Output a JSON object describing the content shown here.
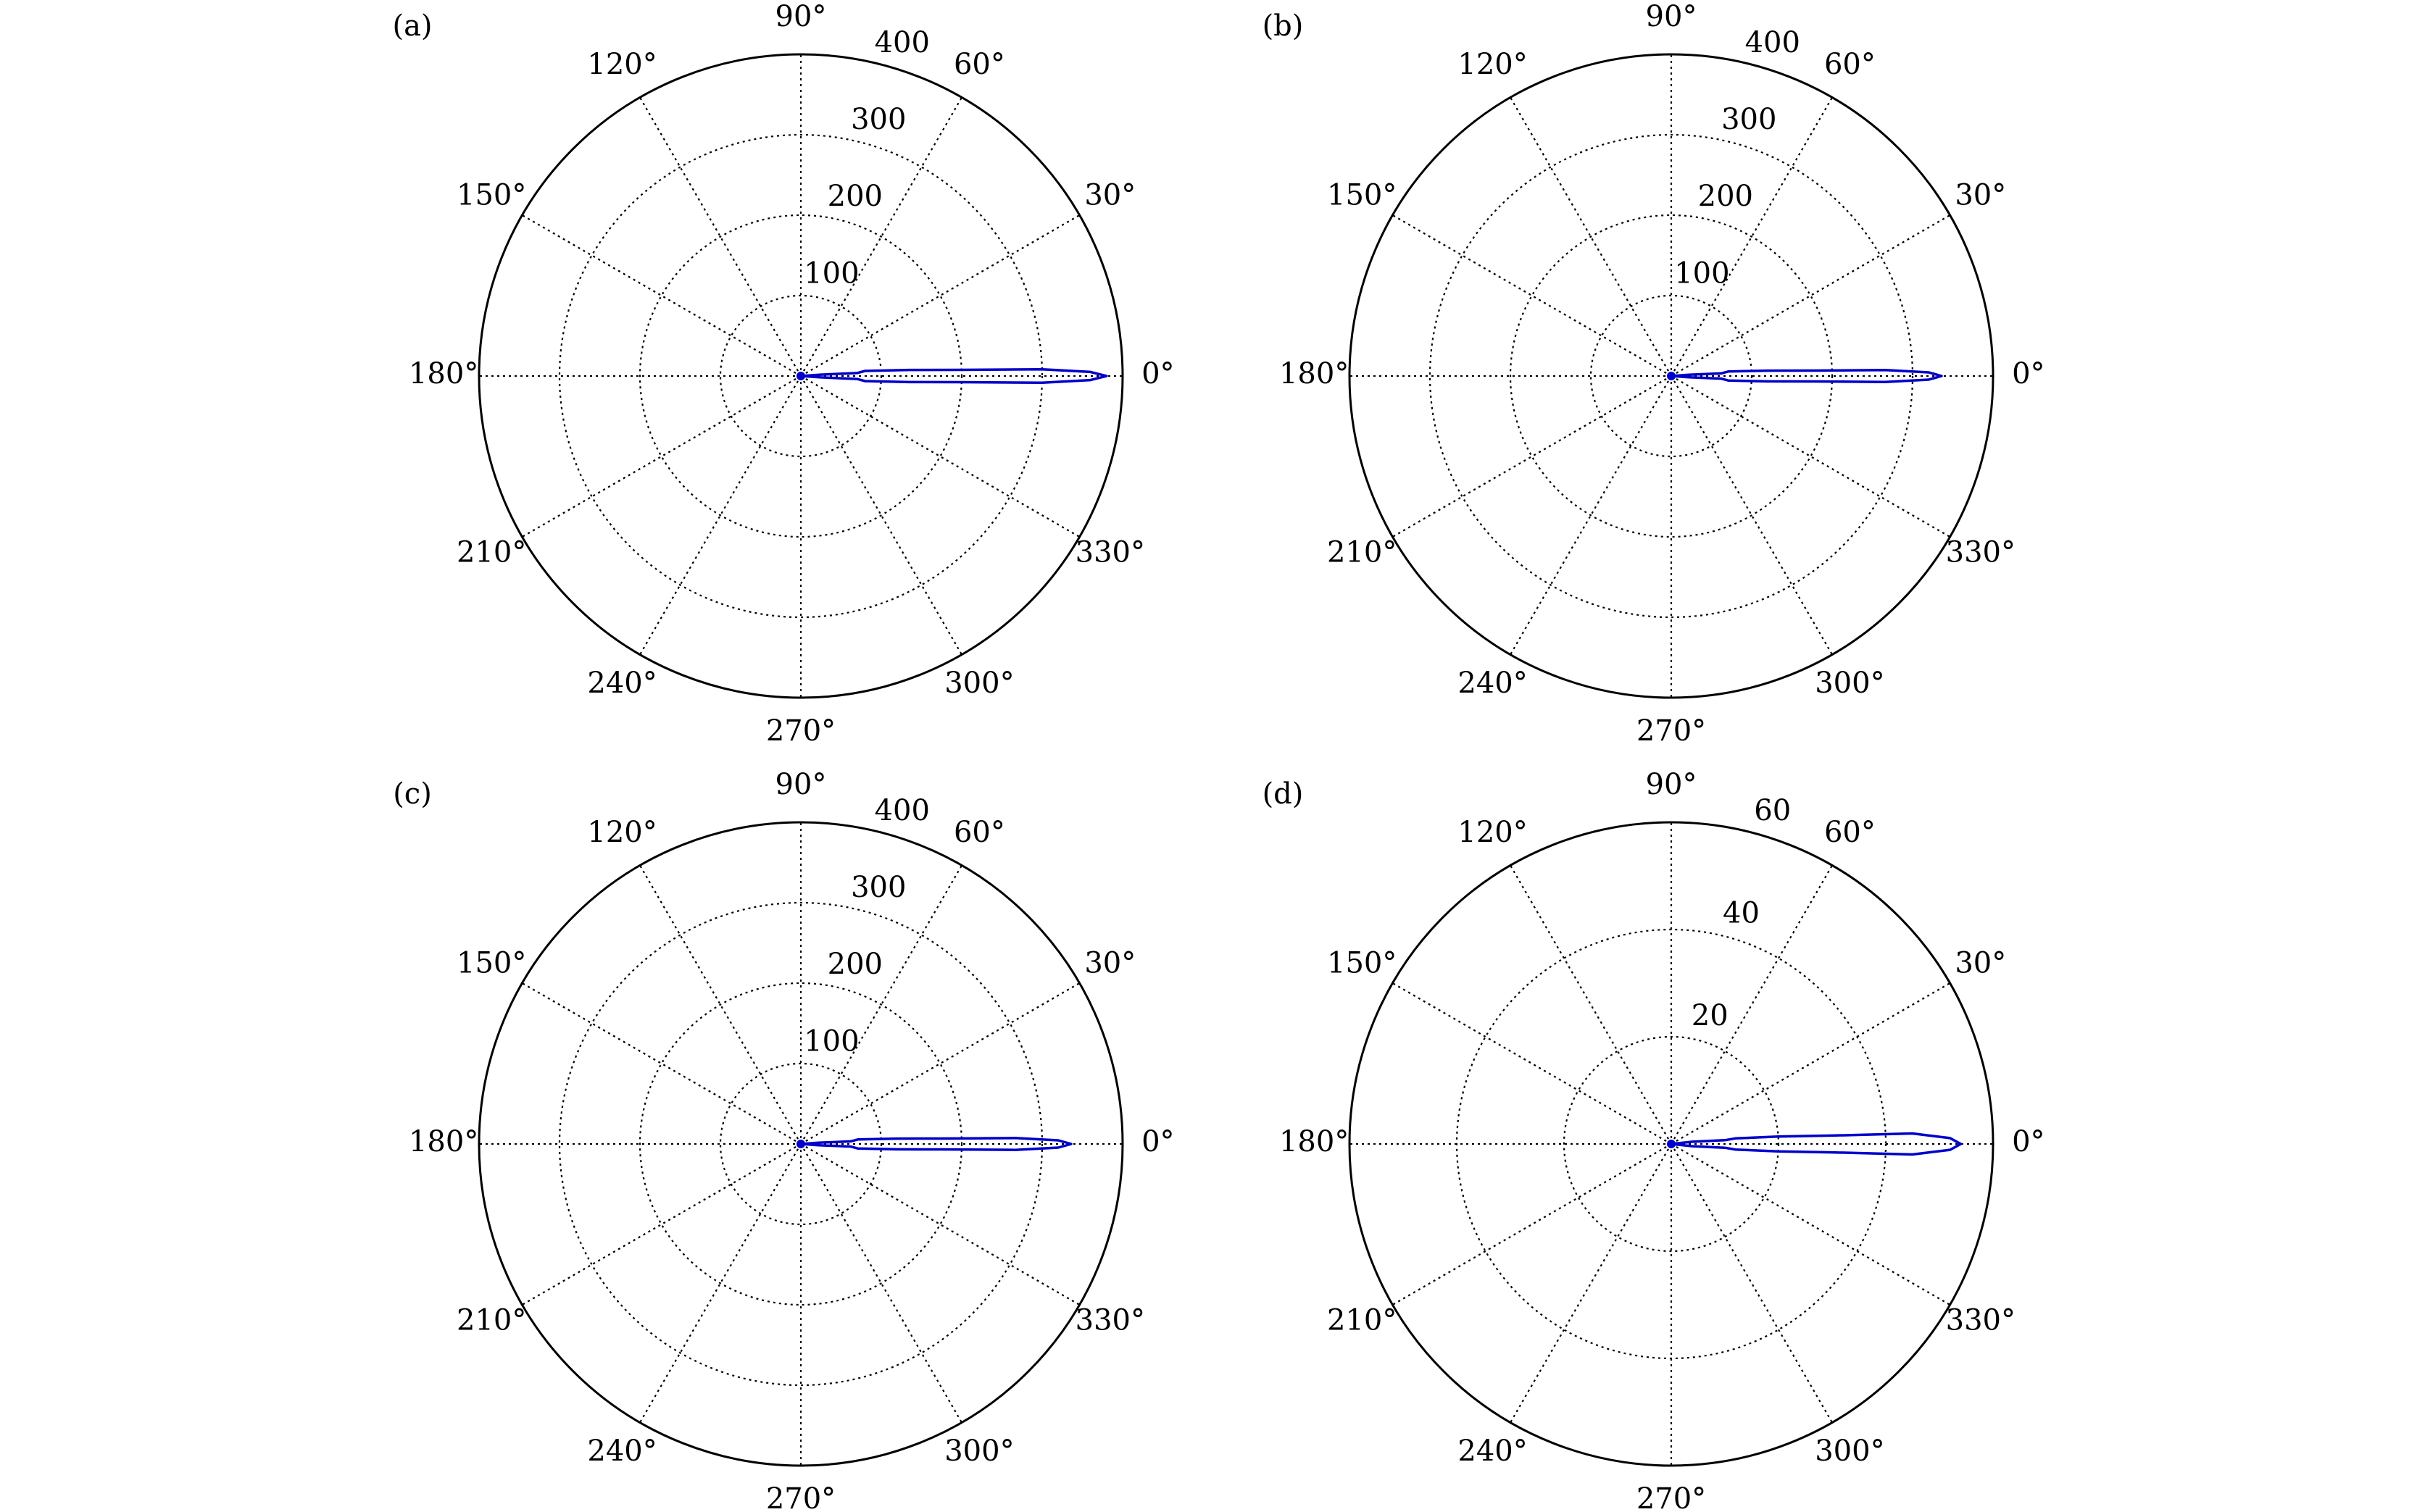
{
  "chart_data": [
    {
      "type": "polar",
      "panel_label": "(a)",
      "grid": true,
      "rlim": [
        0,
        400
      ],
      "rticks": [
        100,
        200,
        300,
        400
      ],
      "theta_ticks": [
        {
          "value": 0,
          "label": "0°"
        },
        {
          "value": 30,
          "label": "30°"
        },
        {
          "value": 60,
          "label": "60°"
        },
        {
          "value": 90,
          "label": "90°"
        },
        {
          "value": 120,
          "label": "120°"
        },
        {
          "value": 150,
          "label": "150°"
        },
        {
          "value": 180,
          "label": "180°"
        },
        {
          "value": 210,
          "label": "210°"
        },
        {
          "value": 240,
          "label": "240°"
        },
        {
          "value": 270,
          "label": "270°"
        },
        {
          "value": 300,
          "label": "300°"
        },
        {
          "value": 330,
          "label": "330°"
        }
      ],
      "series": [
        {
          "color": "#0000cc",
          "theta": [
            0,
            4,
            3,
            4.5,
            3.2,
            2.2,
            1.6,
            0.8,
            0,
            -0.8,
            -1.6,
            -2.2,
            -3.2,
            -4.5,
            -3,
            -4,
            0
          ],
          "r": [
            0,
            25,
            70,
            80,
            135,
            200,
            300,
            360,
            380,
            360,
            300,
            200,
            135,
            80,
            70,
            25,
            0
          ]
        }
      ]
    },
    {
      "type": "polar",
      "panel_label": "(b)",
      "grid": true,
      "rlim": [
        0,
        400
      ],
      "rticks": [
        100,
        200,
        300,
        400
      ],
      "theta_ticks": [
        {
          "value": 0,
          "label": "0°"
        },
        {
          "value": 30,
          "label": "30°"
        },
        {
          "value": 60,
          "label": "60°"
        },
        {
          "value": 90,
          "label": "90°"
        },
        {
          "value": 120,
          "label": "120°"
        },
        {
          "value": 150,
          "label": "150°"
        },
        {
          "value": 180,
          "label": "180°"
        },
        {
          "value": 210,
          "label": "210°"
        },
        {
          "value": 240,
          "label": "240°"
        },
        {
          "value": 270,
          "label": "270°"
        },
        {
          "value": 300,
          "label": "300°"
        },
        {
          "value": 330,
          "label": "330°"
        }
      ],
      "series": [
        {
          "color": "#0000cc",
          "theta": [
            0,
            4,
            3,
            4.5,
            3.2,
            2.2,
            1.6,
            0.8,
            0,
            -0.8,
            -1.6,
            -2.2,
            -3.2,
            -4.5,
            -3,
            -4,
            0
          ],
          "r": [
            0,
            22,
            62,
            71,
            120,
            177,
            266,
            320,
            336,
            320,
            266,
            177,
            120,
            71,
            62,
            22,
            0
          ]
        }
      ]
    },
    {
      "type": "polar",
      "panel_label": "(c)",
      "grid": true,
      "rlim": [
        0,
        400
      ],
      "rticks": [
        100,
        200,
        300,
        400
      ],
      "theta_ticks": [
        {
          "value": 0,
          "label": "0°"
        },
        {
          "value": 30,
          "label": "30°"
        },
        {
          "value": 60,
          "label": "60°"
        },
        {
          "value": 90,
          "label": "90°"
        },
        {
          "value": 120,
          "label": "120°"
        },
        {
          "value": 150,
          "label": "150°"
        },
        {
          "value": 180,
          "label": "180°"
        },
        {
          "value": 210,
          "label": "210°"
        },
        {
          "value": 240,
          "label": "240°"
        },
        {
          "value": 270,
          "label": "270°"
        },
        {
          "value": 300,
          "label": "300°"
        },
        {
          "value": 330,
          "label": "330°"
        }
      ],
      "series": [
        {
          "color": "#0000cc",
          "theta": [
            0,
            4,
            3,
            4.5,
            3.2,
            2.2,
            1.6,
            0.8,
            0,
            -0.8,
            -1.6,
            -2.2,
            -3.2,
            -4.5,
            -3,
            -4,
            0
          ],
          "r": [
            0,
            22,
            62,
            71,
            120,
            177,
            266,
            320,
            336,
            320,
            266,
            177,
            120,
            71,
            62,
            22,
            0
          ]
        }
      ]
    },
    {
      "type": "polar",
      "panel_label": "(d)",
      "grid": true,
      "rlim": [
        0,
        60
      ],
      "rticks": [
        20,
        40,
        60
      ],
      "theta_ticks": [
        {
          "value": 0,
          "label": "0°"
        },
        {
          "value": 30,
          "label": "30°"
        },
        {
          "value": 60,
          "label": "60°"
        },
        {
          "value": 90,
          "label": "90°"
        },
        {
          "value": 120,
          "label": "120°"
        },
        {
          "value": 150,
          "label": "150°"
        },
        {
          "value": 180,
          "label": "180°"
        },
        {
          "value": 210,
          "label": "210°"
        },
        {
          "value": 240,
          "label": "240°"
        },
        {
          "value": 270,
          "label": "270°"
        },
        {
          "value": 300,
          "label": "300°"
        },
        {
          "value": 330,
          "label": "330°"
        }
      ],
      "series": [
        {
          "color": "#0000cc",
          "theta": [
            0,
            6,
            4,
            5,
            4,
            3,
            2.5,
            1.2,
            0,
            -1.2,
            -2.5,
            -3,
            -4,
            -5,
            -4,
            -6,
            0
          ],
          "r": [
            0,
            4,
            10,
            12,
            20,
            30,
            45,
            52,
            54,
            52,
            45,
            30,
            20,
            12,
            10,
            4,
            0
          ]
        }
      ]
    }
  ]
}
